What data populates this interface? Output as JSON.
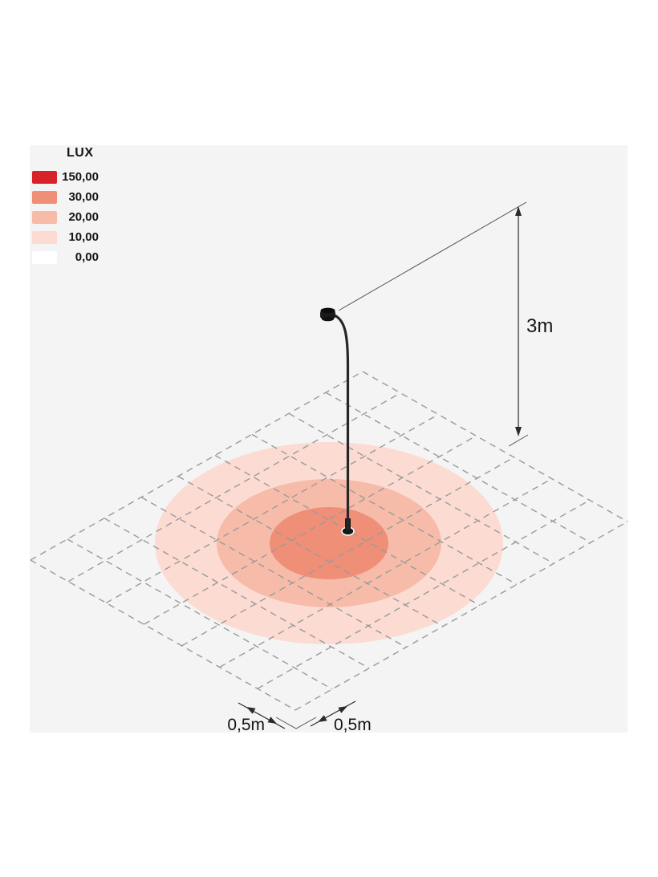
{
  "legend": {
    "title": "LUX",
    "entries": [
      {
        "value": "150,00",
        "color": "#d7222a"
      },
      {
        "value": "30,00",
        "color": "#ef8f78"
      },
      {
        "value": "20,00",
        "color": "#f6bca9"
      },
      {
        "value": "10,00",
        "color": "#fcdcd2"
      },
      {
        "value": "0,00",
        "color": "#ffffff"
      }
    ]
  },
  "dimensions": {
    "mount_height": "3m",
    "cell_left": "0,5m",
    "cell_right": "0,5m"
  },
  "chart_data": {
    "type": "heatmap",
    "title": "LUX",
    "description": "Isometric illuminance diagram: lux zones on the ground plane around a gooseneck pole luminaire mounted at 3m; ground grid cells are 0,5m squares",
    "levels": [
      {
        "lux": "150,00",
        "color": "#d7222a"
      },
      {
        "lux": "30,00",
        "color": "#ef8f78"
      },
      {
        "lux": "20,00",
        "color": "#f6bca9"
      },
      {
        "lux": "10,00",
        "color": "#fcdcd2"
      },
      {
        "lux": "0,00",
        "color": "#ffffff"
      }
    ],
    "annotations": [
      "3m",
      "0,5m",
      "0,5m"
    ]
  }
}
